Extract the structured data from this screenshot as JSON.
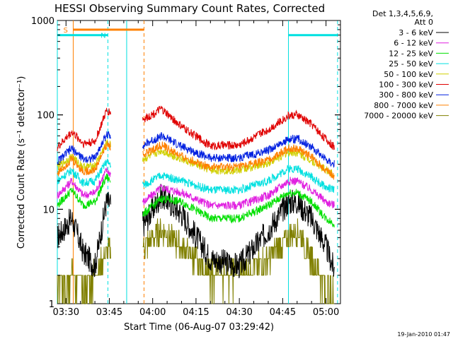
{
  "chart_data": {
    "type": "line",
    "title": "HESSI Observing Summary Count Rates, Corrected",
    "xlabel": "Start Time (06-Aug-07 03:29:42)",
    "ylabel": "Corrected Count Rate (s⁻¹ detector⁻¹)",
    "yscale": "log",
    "ylim": [
      1,
      1000
    ],
    "xlim_minutes_after_0330": [
      -3,
      95
    ],
    "x_ticks": [
      {
        "minutes": 0,
        "label": "03:30"
      },
      {
        "minutes": 15,
        "label": "03:45"
      },
      {
        "minutes": 30,
        "label": "04:00"
      },
      {
        "minutes": 45,
        "label": "04:15"
      },
      {
        "minutes": 60,
        "label": "04:30"
      },
      {
        "minutes": 75,
        "label": "04:45"
      },
      {
        "minutes": 90,
        "label": "05:00"
      }
    ],
    "y_ticks": [
      {
        "value": 1,
        "label": "1"
      },
      {
        "value": 10,
        "label": "10"
      },
      {
        "value": 100,
        "label": "100"
      },
      {
        "value": 1000,
        "label": "1000"
      }
    ],
    "legend_header": [
      "Det 1,3,4,5,6,9,",
      "Att 0"
    ],
    "legend_position": "right, outside",
    "data_gap_minutes": [
      15.5,
      26.5
    ],
    "series": [
      {
        "name": "3 - 6 keV",
        "color": "#000000",
        "x": [
          -3,
          2,
          6,
          10,
          14,
          27,
          33,
          40,
          50,
          60,
          70,
          77,
          80,
          85,
          90,
          93
        ],
        "y": [
          5,
          8,
          3.5,
          2.5,
          12,
          7,
          14,
          9,
          3,
          2.5,
          6,
          12,
          12,
          8,
          4,
          2.2
        ]
      },
      {
        "name": "6 - 12 keV",
        "color": "#e020e0",
        "x": [
          -3,
          2,
          6,
          10,
          14,
          27,
          33,
          40,
          50,
          60,
          70,
          77,
          80,
          85,
          90,
          93
        ],
        "y": [
          14,
          20,
          14,
          15,
          26,
          12,
          17,
          15,
          11,
          11,
          14,
          20,
          20,
          16,
          12,
          11
        ]
      },
      {
        "name": "12 - 25 keV",
        "color": "#00e000",
        "x": [
          -3,
          2,
          6,
          10,
          14,
          27,
          33,
          40,
          50,
          60,
          70,
          77,
          80,
          85,
          90,
          93
        ],
        "y": [
          11,
          16,
          11,
          12,
          22,
          9,
          13,
          12,
          8,
          8,
          11,
          15,
          15,
          12,
          8,
          7
        ]
      },
      {
        "name": "25 - 50 keV",
        "color": "#00e0e0",
        "x": [
          -3,
          2,
          6,
          10,
          14,
          27,
          33,
          40,
          50,
          60,
          70,
          77,
          80,
          85,
          90,
          93
        ],
        "y": [
          20,
          26,
          19,
          20,
          32,
          18,
          23,
          20,
          16,
          16,
          20,
          27,
          27,
          22,
          17,
          16
        ]
      },
      {
        "name": "50 - 100 keV",
        "color": "#d0d000",
        "x": [
          -3,
          2,
          6,
          10,
          14,
          27,
          33,
          40,
          50,
          60,
          70,
          77,
          80,
          85,
          90,
          93
        ],
        "y": [
          28,
          36,
          28,
          29,
          50,
          34,
          42,
          34,
          26,
          26,
          31,
          40,
          40,
          33,
          26,
          23
        ]
      },
      {
        "name": "100 - 300 keV",
        "color": "#e00000",
        "x": [
          -3,
          2,
          6,
          10,
          14,
          27,
          33,
          40,
          50,
          60,
          70,
          77,
          80,
          85,
          90,
          93
        ],
        "y": [
          45,
          66,
          50,
          52,
          110,
          90,
          115,
          75,
          47,
          48,
          70,
          98,
          100,
          80,
          55,
          45
        ]
      },
      {
        "name": "300 - 800 keV",
        "color": "#0020e0",
        "x": [
          -3,
          2,
          6,
          10,
          14,
          27,
          33,
          40,
          50,
          60,
          70,
          77,
          80,
          85,
          90,
          93
        ],
        "y": [
          32,
          44,
          34,
          35,
          62,
          48,
          60,
          46,
          35,
          35,
          42,
          55,
          56,
          46,
          34,
          30
        ]
      },
      {
        "name": "800 - 7000 keV",
        "color": "#ff8000",
        "x": [
          -3,
          2,
          6,
          10,
          14,
          27,
          33,
          40,
          50,
          60,
          70,
          77,
          80,
          85,
          90,
          93
        ],
        "y": [
          24,
          34,
          25,
          26,
          48,
          38,
          48,
          36,
          28,
          28,
          33,
          44,
          44,
          36,
          26,
          22
        ]
      },
      {
        "name": "7000 - 20000 keV",
        "color": "#808000",
        "x": [
          -3,
          2,
          6,
          10,
          14,
          27,
          33,
          40,
          50,
          60,
          70,
          77,
          80,
          85,
          90,
          93
        ],
        "y": [
          1.4,
          2,
          1.5,
          2,
          3.5,
          4,
          6,
          4,
          2,
          2,
          3,
          5,
          6,
          3,
          1.5,
          1.2
        ]
      }
    ],
    "annotations": [
      {
        "label": "S",
        "color": "#ff8000",
        "x_range": [
          2.5,
          27
        ],
        "y": 800
      },
      {
        "label": "N",
        "color": "#00e0e0",
        "x_range": [
          11,
          14.5
        ],
        "y": 700
      }
    ],
    "marker_lines": [
      {
        "x": 2.5,
        "color": "#ff8000",
        "style": "solid"
      },
      {
        "x": 27,
        "color": "#ff8000",
        "style": "dashed"
      },
      {
        "x": -3,
        "color": "#00e0e0",
        "style": "solid"
      },
      {
        "x": 14.5,
        "color": "#00e0e0",
        "style": "dashed"
      },
      {
        "x": 21,
        "color": "#00e0e0",
        "style": "solid"
      },
      {
        "x": 77,
        "color": "#00e0e0",
        "style": "solid"
      },
      {
        "x": 94,
        "color": "#00e0e0",
        "style": "dashed"
      }
    ],
    "cyan_bars": [
      {
        "x_range": [
          -3,
          14.5
        ],
        "y": 700
      },
      {
        "x_range": [
          77,
          94
        ],
        "y": 700
      }
    ],
    "timestamp": "19-Jan-2010 01:47"
  }
}
